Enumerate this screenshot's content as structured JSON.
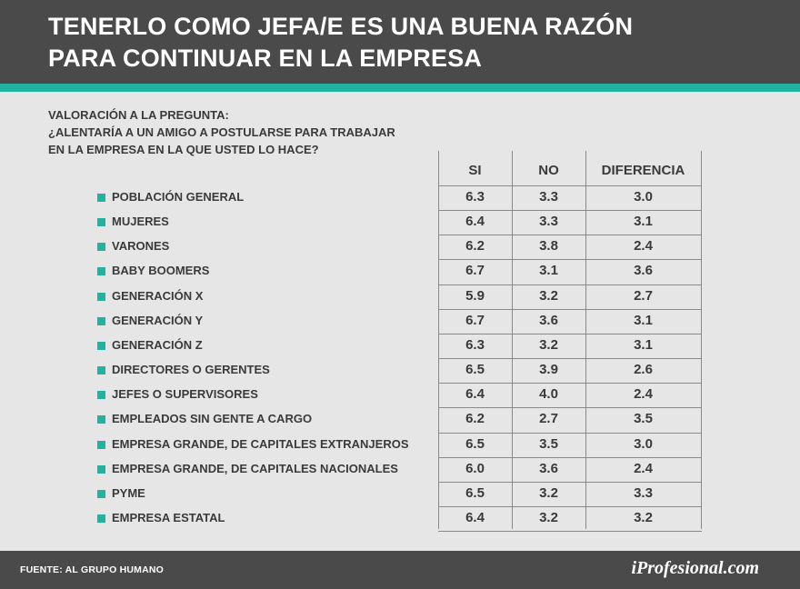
{
  "header": {
    "title_line1": "TENERLO COMO JEFA/E ES UNA BUENA RAZÓN",
    "title_line2": "PARA CONTINUAR EN LA EMPRESA"
  },
  "question": {
    "line1": "VALORACIÓN A LA PREGUNTA:",
    "line2": "¿ALENTARÍA A UN AMIGO A POSTULARSE PARA TRABAJAR",
    "line3": "EN LA EMPRESA EN LA QUE USTED LO HACE?"
  },
  "chart_data": {
    "type": "table",
    "columns": [
      "SI",
      "NO",
      "DIFERENCIA"
    ],
    "rows": [
      {
        "label": "POBLACIÓN GENERAL",
        "si": "6.3",
        "no": "3.3",
        "diferencia": "3.0"
      },
      {
        "label": "MUJERES",
        "si": "6.4",
        "no": "3.3",
        "diferencia": "3.1"
      },
      {
        "label": "VARONES",
        "si": "6.2",
        "no": "3.8",
        "diferencia": "2.4"
      },
      {
        "label": "BABY BOOMERS",
        "si": "6.7",
        "no": "3.1",
        "diferencia": "3.6"
      },
      {
        "label": "GENERACIÓN X",
        "si": "5.9",
        "no": "3.2",
        "diferencia": "2.7"
      },
      {
        "label": "GENERACIÓN Y",
        "si": "6.7",
        "no": "3.6",
        "diferencia": "3.1"
      },
      {
        "label": "GENERACIÓN Z",
        "si": "6.3",
        "no": "3.2",
        "diferencia": "3.1"
      },
      {
        "label": "DIRECTORES O GERENTES",
        "si": "6.5",
        "no": "3.9",
        "diferencia": "2.6"
      },
      {
        "label": "JEFES O SUPERVISORES",
        "si": "6.4",
        "no": "4.0",
        "diferencia": "2.4"
      },
      {
        "label": "EMPLEADOS SIN GENTE A CARGO",
        "si": "6.2",
        "no": "2.7",
        "diferencia": "3.5"
      },
      {
        "label": "EMPRESA GRANDE, DE CAPITALES EXTRANJEROS",
        "si": "6.5",
        "no": "3.5",
        "diferencia": "3.0"
      },
      {
        "label": "EMPRESA GRANDE, DE CAPITALES NACIONALES",
        "si": "6.0",
        "no": "3.6",
        "diferencia": "2.4"
      },
      {
        "label": "PYME",
        "si": "6.5",
        "no": "3.2",
        "diferencia": "3.3"
      },
      {
        "label": "EMPRESA ESTATAL",
        "si": "6.4",
        "no": "3.2",
        "diferencia": "3.2"
      }
    ]
  },
  "footer": {
    "source": "FUENTE: AL GRUPO HUMANO",
    "brand": "iProfesional.com"
  },
  "colors": {
    "header_bg": "#4a4a4a",
    "accent": "#20b3a0",
    "background": "#e6e6e6",
    "text": "#3a3a3a"
  }
}
